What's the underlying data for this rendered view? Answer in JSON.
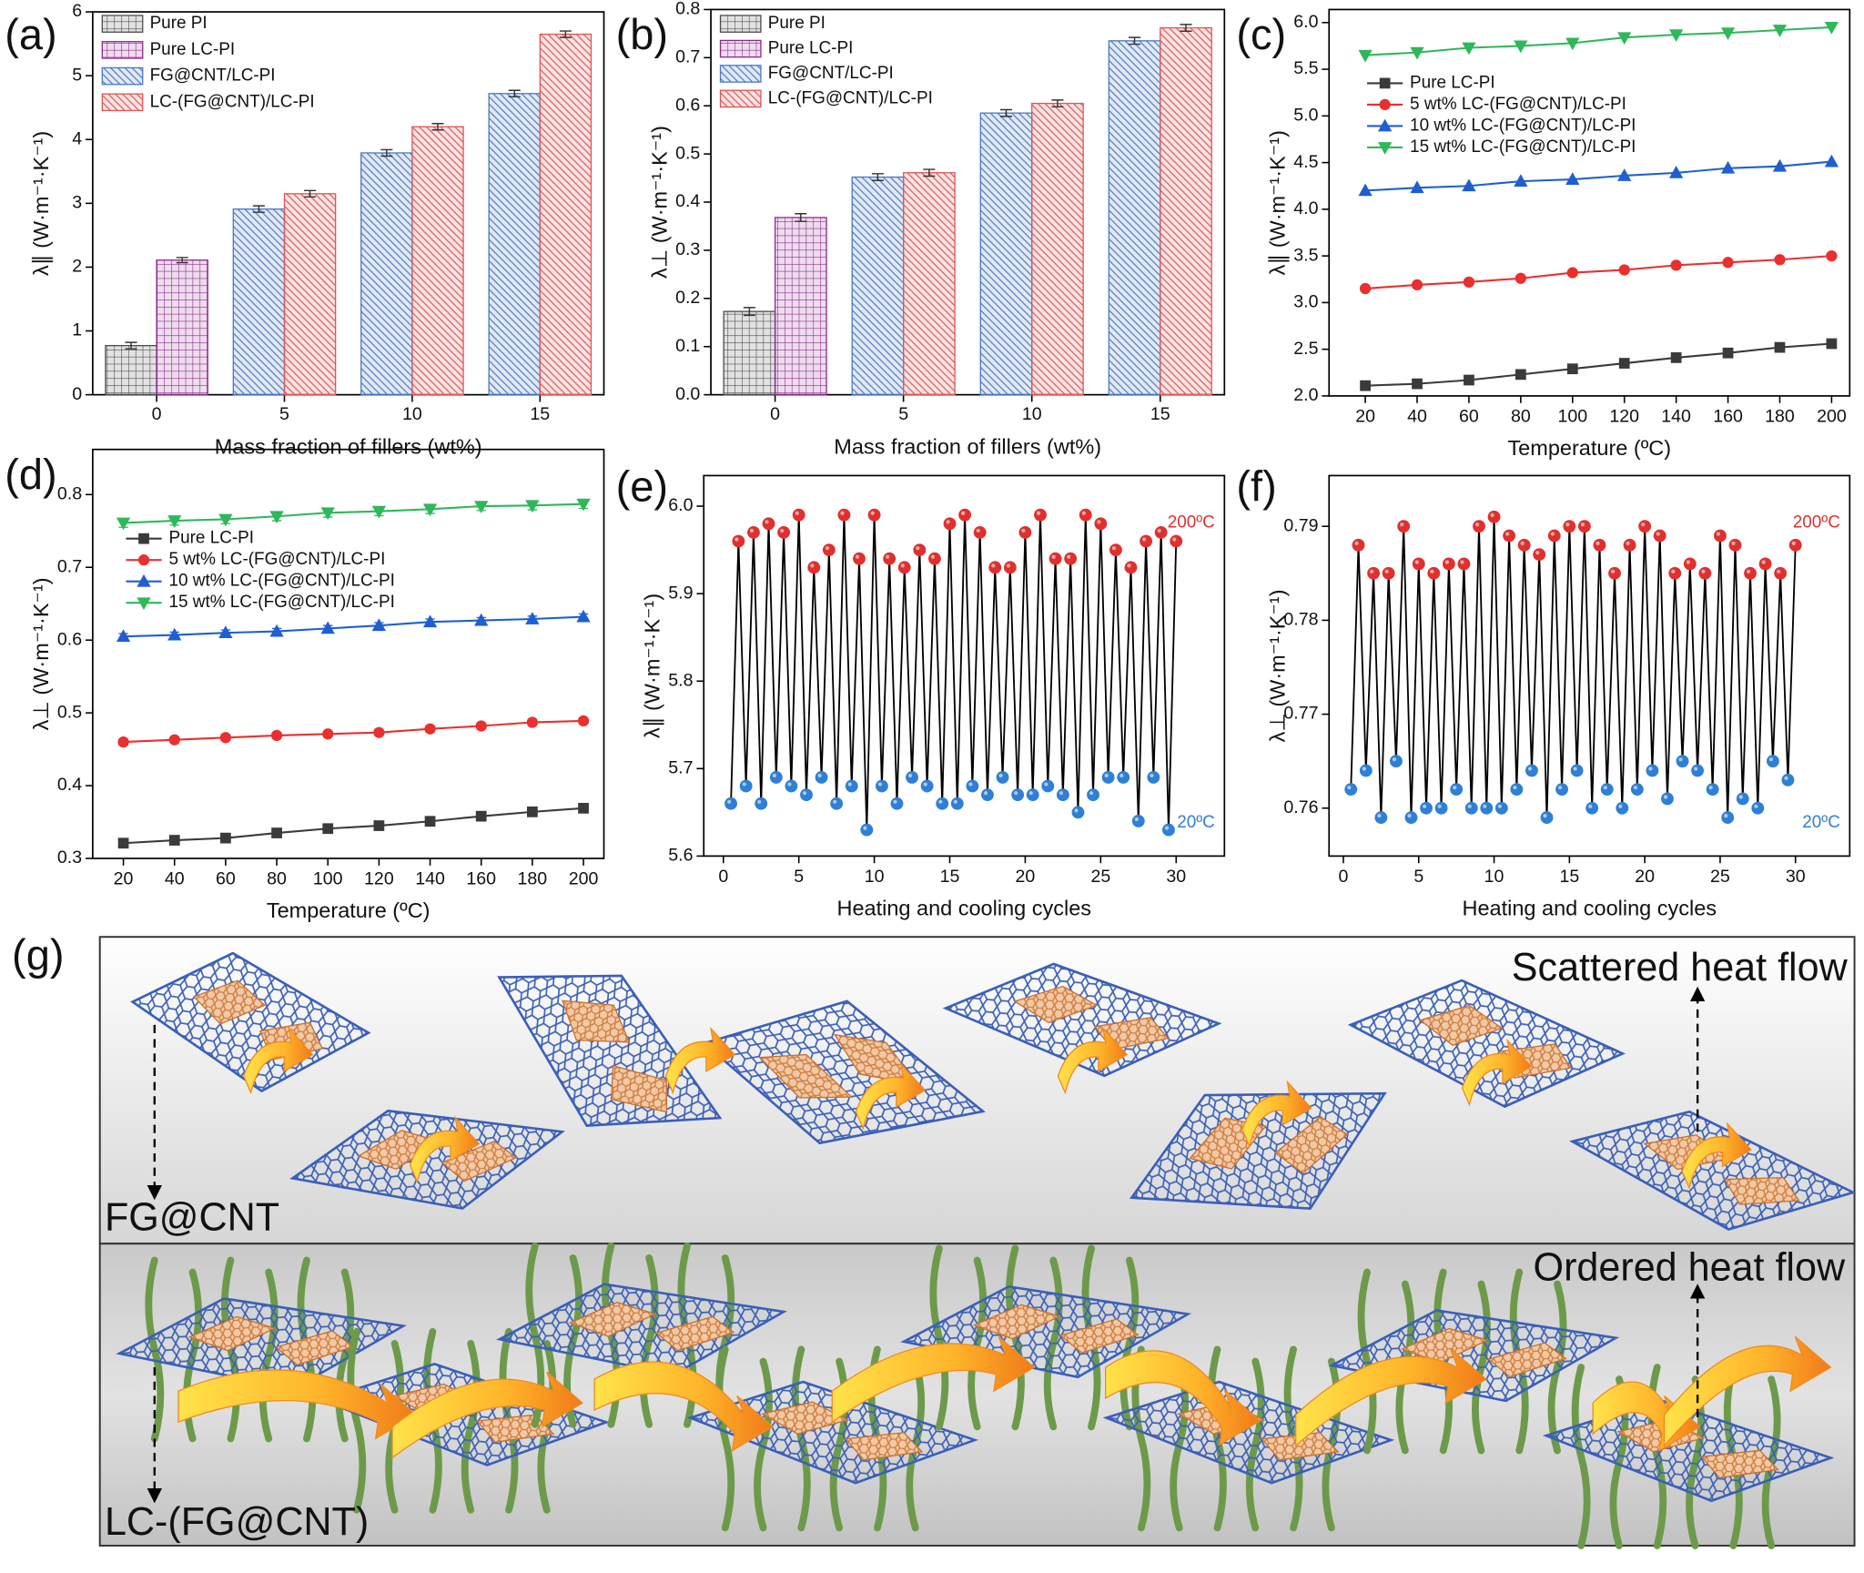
{
  "chart_data": [
    {
      "type": "bar",
      "label": "(a)",
      "x_label": "Mass fraction of fillers (wt%)",
      "y_label": "λ∥ (W·m⁻¹·K⁻¹)",
      "categories": [
        "0",
        "5",
        "10",
        "15"
      ],
      "ylim": [
        0,
        6
      ],
      "yticks": [
        0,
        1,
        2,
        3,
        4,
        5,
        6
      ],
      "series": [
        {
          "name": "Pure PI",
          "color": "#4d4d4d",
          "hatch": "cross",
          "values": [
            0.77,
            null,
            null,
            null
          ],
          "errors": [
            0.05,
            null,
            null,
            null
          ]
        },
        {
          "name": "Pure LC-PI",
          "color": "#8e2a8e",
          "hatch": "cross",
          "values": [
            2.11,
            null,
            null,
            null
          ],
          "errors": [
            0.04,
            null,
            null,
            null
          ]
        },
        {
          "name": "FG@CNT/LC-PI",
          "color": "#4a78c4",
          "hatch": "diag",
          "values": [
            null,
            2.91,
            3.79,
            4.72
          ],
          "errors": [
            null,
            0.05,
            0.05,
            0.05
          ]
        },
        {
          "name": "LC-(FG@CNT)/LC-PI",
          "color": "#e05555",
          "hatch": "diag",
          "values": [
            null,
            3.15,
            4.2,
            5.65
          ],
          "errors": [
            null,
            0.05,
            0.05,
            0.05
          ]
        }
      ]
    },
    {
      "type": "bar",
      "label": "(b)",
      "x_label": "Mass fraction of fillers (wt%)",
      "y_label": "λ⊥ (W·m⁻¹·K⁻¹)",
      "categories": [
        "0",
        "5",
        "10",
        "15"
      ],
      "ylim": [
        0,
        0.8
      ],
      "yticks": [
        {
          "value": 0,
          "label": "0.0"
        },
        0.1,
        0.2,
        0.3,
        0.4,
        0.5,
        0.6,
        0.7,
        0.8
      ],
      "series": [
        {
          "name": "Pure PI",
          "color": "#4d4d4d",
          "hatch": "cross",
          "values": [
            0.173,
            null,
            null,
            null
          ],
          "errors": [
            0.008,
            null,
            null,
            null
          ]
        },
        {
          "name": "Pure LC-PI",
          "color": "#8e2a8e",
          "hatch": "cross",
          "values": [
            0.368,
            null,
            null,
            null
          ],
          "errors": [
            0.008,
            null,
            null,
            null
          ]
        },
        {
          "name": "FG@CNT/LC-PI",
          "color": "#4a78c4",
          "hatch": "diag",
          "values": [
            null,
            0.452,
            0.585,
            0.735
          ],
          "errors": [
            null,
            0.007,
            0.007,
            0.007
          ]
        },
        {
          "name": "LC-(FG@CNT)/LC-PI",
          "color": "#e05555",
          "hatch": "diag",
          "values": [
            null,
            0.461,
            0.605,
            0.762
          ],
          "errors": [
            null,
            0.007,
            0.007,
            0.007
          ]
        }
      ]
    },
    {
      "type": "line",
      "label": "(c)",
      "x_label": "Temperature (ºC)",
      "y_label": "λ∥ (W·m⁻¹·K⁻¹)",
      "x": [
        20,
        40,
        60,
        80,
        100,
        120,
        140,
        160,
        180,
        200
      ],
      "xlim": [
        6,
        207
      ],
      "xticks": [
        20,
        40,
        60,
        80,
        100,
        120,
        140,
        160,
        180,
        200
      ],
      "ylim": [
        2,
        6.14
      ],
      "yticks": [
        {
          "value": 2,
          "label": "2.0"
        },
        2.5,
        {
          "value": 3,
          "label": "3.0"
        },
        3.5,
        {
          "value": 4,
          "label": "4.0"
        },
        4.5,
        {
          "value": 5,
          "label": "5.0"
        },
        5.5,
        {
          "value": 6,
          "label": "6.0"
        }
      ],
      "series": [
        {
          "name": "Pure LC-PI",
          "color": "#3a3a3a",
          "marker": "square",
          "values": [
            2.11,
            2.13,
            2.17,
            2.23,
            2.29,
            2.35,
            2.41,
            2.46,
            2.52,
            2.56
          ]
        },
        {
          "name": "5 wt% LC-(FG@CNT)/LC-PI",
          "color": "#e8302e",
          "marker": "circle",
          "values": [
            3.15,
            3.19,
            3.22,
            3.26,
            3.32,
            3.35,
            3.4,
            3.43,
            3.46,
            3.5
          ]
        },
        {
          "name": "10 wt% LC-(FG@CNT)/LC-PI",
          "color": "#1f5fd0",
          "marker": "triangle-up",
          "values": [
            4.2,
            4.23,
            4.25,
            4.3,
            4.32,
            4.36,
            4.39,
            4.44,
            4.46,
            4.51
          ]
        },
        {
          "name": "15 wt% LC-(FG@CNT)/LC-PI",
          "color": "#2eb85a",
          "marker": "triangle-down",
          "values": [
            5.65,
            5.68,
            5.73,
            5.75,
            5.78,
            5.84,
            5.87,
            5.89,
            5.92,
            5.95
          ]
        }
      ]
    },
    {
      "type": "line",
      "label": "(d)",
      "x_label": "Temperature (ºC)",
      "y_label": "λ⊥ (W·m⁻¹·K⁻¹)",
      "x": [
        20,
        40,
        60,
        80,
        100,
        120,
        140,
        160,
        180,
        200
      ],
      "xlim": [
        8,
        208
      ],
      "xticks": [
        20,
        40,
        60,
        80,
        100,
        120,
        140,
        160,
        180,
        200
      ],
      "ylim": [
        0.3,
        0.862
      ],
      "yticks": [
        0.3,
        0.4,
        0.5,
        0.6,
        0.7,
        0.8
      ],
      "series": [
        {
          "name": "Pure LC-PI",
          "color": "#3a3a3a",
          "marker": "square",
          "values": [
            0.321,
            0.325,
            0.328,
            0.335,
            0.341,
            0.345,
            0.351,
            0.358,
            0.364,
            0.369
          ],
          "errors": [
            0.003,
            0.003,
            0.003,
            0.003,
            0.003,
            0.003,
            0.003,
            0.003,
            0.003,
            0.003
          ]
        },
        {
          "name": "5 wt% LC-(FG@CNT)/LC-PI",
          "color": "#e8302e",
          "marker": "circle",
          "values": [
            0.46,
            0.463,
            0.466,
            0.469,
            0.471,
            0.473,
            0.478,
            0.482,
            0.487,
            0.489
          ],
          "errors": [
            0.004,
            0.004,
            0.004,
            0.004,
            0.004,
            0.004,
            0.004,
            0.004,
            0.004,
            0.004
          ]
        },
        {
          "name": "10 wt% LC-(FG@CNT)/LC-PI",
          "color": "#1f5fd0",
          "marker": "triangle-up",
          "values": [
            0.605,
            0.607,
            0.61,
            0.612,
            0.616,
            0.62,
            0.625,
            0.627,
            0.629,
            0.632
          ],
          "errors": [
            0.004,
            0.004,
            0.004,
            0.004,
            0.004,
            0.004,
            0.004,
            0.004,
            0.004,
            0.004
          ]
        },
        {
          "name": "15 wt% LC-(FG@CNT)/LC-PI",
          "color": "#2eb85a",
          "marker": "triangle-down",
          "values": [
            0.761,
            0.764,
            0.766,
            0.77,
            0.775,
            0.777,
            0.78,
            0.784,
            0.785,
            0.787
          ],
          "errors": [
            0.006,
            0.006,
            0.006,
            0.006,
            0.006,
            0.006,
            0.006,
            0.006,
            0.006,
            0.006
          ]
        }
      ]
    },
    {
      "type": "cycle",
      "label": "(e)",
      "x_label": "Heating and cooling cycles",
      "y_label": "λ∥ (W·m⁻¹·K⁻¹)",
      "x": [
        0.5,
        1,
        1.5,
        2,
        2.5,
        3,
        3.5,
        4,
        4.5,
        5,
        5.5,
        6,
        6.5,
        7,
        7.5,
        8,
        8.5,
        9,
        9.5,
        10,
        10.5,
        11,
        11.5,
        12,
        12.5,
        13,
        13.5,
        14,
        14.5,
        15,
        15.5,
        16,
        16.5,
        17,
        17.5,
        18,
        18.5,
        19,
        19.5,
        20,
        20.5,
        21,
        21.5,
        22,
        22.5,
        23,
        23.5,
        24,
        24.5,
        25,
        25.5,
        26,
        26.5,
        27,
        27.5,
        28,
        28.5,
        29,
        29.5,
        30
      ],
      "xlim": [
        -1.3,
        33.2
      ],
      "xticks": [
        0,
        5,
        10,
        15,
        20,
        25,
        30
      ],
      "ylim": [
        5.6,
        6.035
      ],
      "yticks": [
        5.6,
        5.7,
        5.8,
        5.9,
        {
          "value": 6,
          "label": "6.0"
        }
      ],
      "series": [
        {
          "color": "#000000",
          "marker_colors": [
            "#2f7fd6",
            "#e0302e"
          ],
          "values": [
            5.66,
            5.96,
            5.68,
            5.97,
            5.66,
            5.98,
            5.69,
            5.97,
            5.68,
            5.99,
            5.67,
            5.93,
            5.69,
            5.95,
            5.66,
            5.99,
            5.68,
            5.94,
            5.63,
            5.99,
            5.68,
            5.94,
            5.66,
            5.93,
            5.69,
            5.95,
            5.68,
            5.94,
            5.66,
            5.98,
            5.66,
            5.99,
            5.68,
            5.97,
            5.67,
            5.93,
            5.69,
            5.93,
            5.67,
            5.97,
            5.67,
            5.99,
            5.68,
            5.94,
            5.67,
            5.94,
            5.65,
            5.99,
            5.67,
            5.98,
            5.69,
            5.95,
            5.69,
            5.93,
            5.64,
            5.96,
            5.69,
            5.97,
            5.63,
            5.96
          ]
        }
      ],
      "annotations": [
        {
          "text": "200ºC",
          "color": "#e0302e"
        },
        {
          "text": "20ºC",
          "color": "#2f7fd6"
        }
      ]
    },
    {
      "type": "cycle",
      "label": "(f)",
      "x_label": "Heating and cooling cycles",
      "y_label": "λ⊥ (W·m⁻¹·K⁻¹)",
      "x": [
        0.5,
        1,
        1.5,
        2,
        2.5,
        3,
        3.5,
        4,
        4.5,
        5,
        5.5,
        6,
        6.5,
        7,
        7.5,
        8,
        8.5,
        9,
        9.5,
        10,
        10.5,
        11,
        11.5,
        12,
        12.5,
        13,
        13.5,
        14,
        14.5,
        15,
        15.5,
        16,
        16.5,
        17,
        17.5,
        18,
        18.5,
        19,
        19.5,
        20,
        20.5,
        21,
        21.5,
        22,
        22.5,
        23,
        23.5,
        24,
        24.5,
        25,
        25.5,
        26,
        26.5,
        27,
        27.5,
        28,
        28.5,
        29,
        29.5,
        30
      ],
      "xlim": [
        -0.95,
        33.6
      ],
      "xticks": [
        0,
        5,
        10,
        15,
        20,
        25,
        30
      ],
      "ylim": [
        0.7549,
        0.7954
      ],
      "yticks": [
        0.76,
        0.77,
        0.78,
        0.79
      ],
      "series": [
        {
          "color": "#000000",
          "marker_colors": [
            "#2f7fd6",
            "#e0302e"
          ],
          "values": [
            0.762,
            0.788,
            0.764,
            0.785,
            0.759,
            0.785,
            0.765,
            0.79,
            0.759,
            0.786,
            0.76,
            0.785,
            0.76,
            0.786,
            0.762,
            0.786,
            0.76,
            0.79,
            0.76,
            0.791,
            0.76,
            0.789,
            0.762,
            0.788,
            0.764,
            0.787,
            0.759,
            0.789,
            0.762,
            0.79,
            0.764,
            0.79,
            0.76,
            0.788,
            0.762,
            0.785,
            0.76,
            0.788,
            0.762,
            0.79,
            0.764,
            0.789,
            0.761,
            0.785,
            0.765,
            0.786,
            0.764,
            0.785,
            0.762,
            0.789,
            0.759,
            0.788,
            0.761,
            0.785,
            0.76,
            0.786,
            0.765,
            0.785,
            0.763,
            0.788
          ]
        }
      ],
      "annotations": [
        {
          "text": "200ºC",
          "color": "#e0302e"
        },
        {
          "text": "20ºC",
          "color": "#2f7fd6"
        }
      ]
    }
  ],
  "illustration": {
    "label": "(g)",
    "top": {
      "title": "Scattered heat flow",
      "filler": "FG@CNT"
    },
    "bottom": {
      "title": "Ordered heat flow",
      "filler": "LC-(FG@CNT)"
    }
  }
}
